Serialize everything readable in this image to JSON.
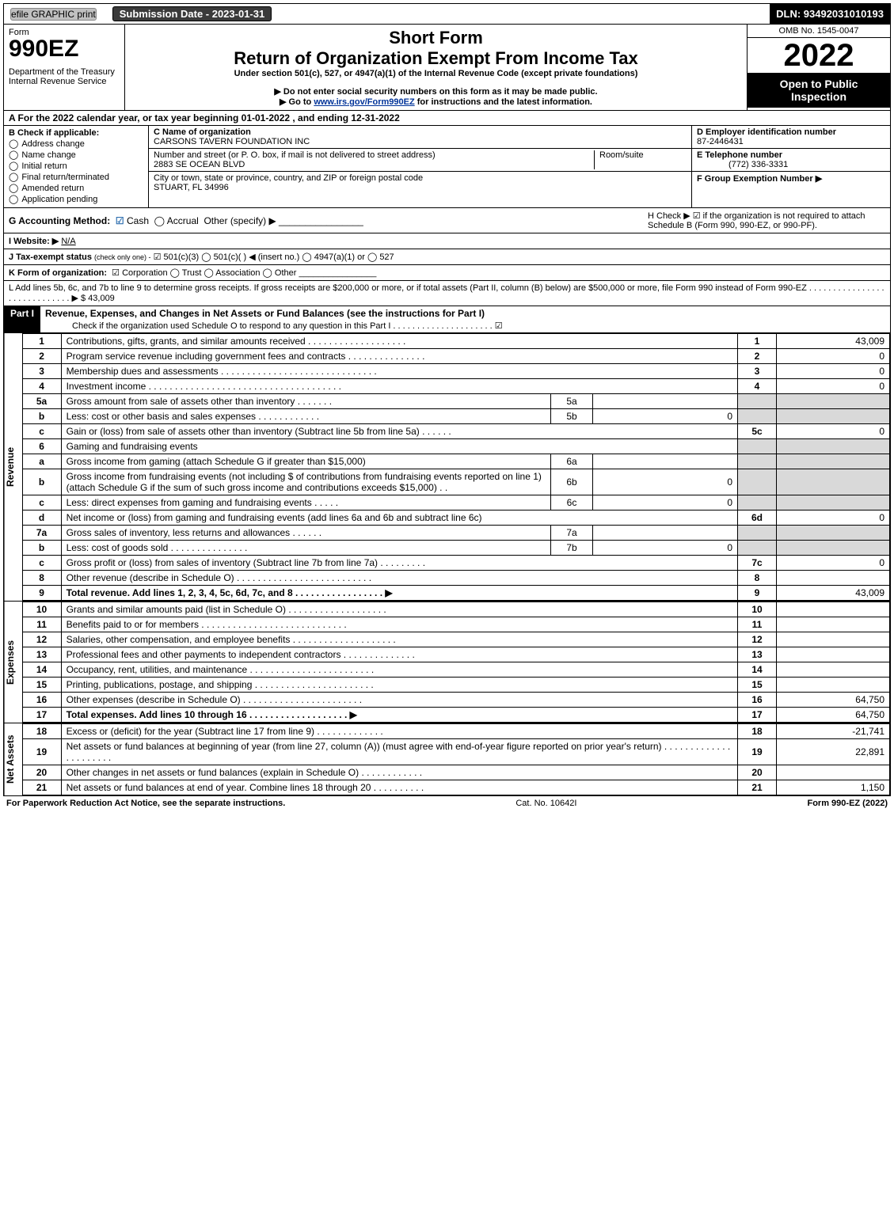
{
  "top": {
    "efile": "efile GRAPHIC print",
    "submission": "Submission Date - 2023-01-31",
    "dln": "DLN: 93492031010193"
  },
  "header": {
    "form_label": "Form",
    "form_number": "990EZ",
    "dept": "Department of the Treasury\nInternal Revenue Service",
    "short_form": "Short Form",
    "main_title": "Return of Organization Exempt From Income Tax",
    "subtitle": "Under section 501(c), 527, or 4947(a)(1) of the Internal Revenue Code (except private foundations)",
    "warn1": "▶ Do not enter social security numbers on this form as it may be made public.",
    "warn2_prefix": "▶ Go to ",
    "warn2_link": "www.irs.gov/Form990EZ",
    "warn2_suffix": " for instructions and the latest information.",
    "omb": "OMB No. 1545-0047",
    "year": "2022",
    "open": "Open to Public Inspection"
  },
  "section_a": "A  For the 2022 calendar year, or tax year beginning 01-01-2022 , and ending 12-31-2022",
  "col_b": {
    "title": "B  Check if applicable:",
    "items": [
      "Address change",
      "Name change",
      "Initial return",
      "Final return/terminated",
      "Amended return",
      "Application pending"
    ]
  },
  "col_c": {
    "name_label": "C Name of organization",
    "name": "CARSONS TAVERN FOUNDATION INC",
    "street_label": "Number and street (or P. O. box, if mail is not delivered to street address)",
    "room_label": "Room/suite",
    "street": "2883 SE OCEAN BLVD",
    "city_label": "City or town, state or province, country, and ZIP or foreign postal code",
    "city": "STUART, FL  34996"
  },
  "col_d": {
    "ein_label": "D Employer identification number",
    "ein": "87-2446431",
    "phone_label": "E Telephone number",
    "phone": "(772) 336-3331",
    "group_label": "F Group Exemption Number   ▶"
  },
  "g": {
    "label": "G Accounting Method:",
    "cash": "Cash",
    "accrual": "Accrual",
    "other": "Other (specify) ▶"
  },
  "h": {
    "text": "H  Check ▶ ☑ if the organization is not required to attach Schedule B (Form 990, 990-EZ, or 990-PF)."
  },
  "i": {
    "label": "I Website: ▶",
    "value": "N/A"
  },
  "j": {
    "label": "J Tax-exempt status",
    "note": "(check only one) -",
    "opts": "☑ 501(c)(3)  ◯ 501(c)(  ) ◀ (insert no.)  ◯ 4947(a)(1) or  ◯ 527"
  },
  "k": {
    "label": "K Form of organization:",
    "opts": "☑ Corporation   ◯ Trust   ◯ Association   ◯ Other"
  },
  "l": {
    "text": "L Add lines 5b, 6c, and 7b to line 9 to determine gross receipts. If gross receipts are $200,000 or more, or if total assets (Part II, column (B) below) are $500,000 or more, file Form 990 instead of Form 990-EZ   .  .  .  .  .  .  .  .  .  .  .  .  .  .  .  .  .  .  .  .  .  .  .  .  .  .  .  .  . ▶ $",
    "value": "43,009"
  },
  "part1": {
    "header": "Part I",
    "title": "Revenue, Expenses, and Changes in Net Assets or Fund Balances (see the instructions for Part I)",
    "check_line": "Check if the organization used Schedule O to respond to any question in this Part I  .  .  .  .  .  .  .  .  .  .  .  .  .  .  .  .  .  .  .  .  . ☑"
  },
  "revenue": {
    "side": "Revenue",
    "rows": [
      {
        "n": "1",
        "desc": "Contributions, gifts, grants, and similar amounts received  .  .  .  .  .  .  .  .  .  .  .  .  .  .  .  .  .  .  .",
        "code": "1",
        "val": "43,009"
      },
      {
        "n": "2",
        "desc": "Program service revenue including government fees and contracts  .  .  .  .  .  .  .  .  .  .  .  .  .  .  .",
        "code": "2",
        "val": "0"
      },
      {
        "n": "3",
        "desc": "Membership dues and assessments  .  .  .  .  .  .  .  .  .  .  .  .  .  .  .  .  .  .  .  .  .  .  .  .  .  .  .  .  .  .",
        "code": "3",
        "val": "0"
      },
      {
        "n": "4",
        "desc": "Investment income  .  .  .  .  .  .  .  .  .  .  .  .  .  .  .  .  .  .  .  .  .  .  .  .  .  .  .  .  .  .  .  .  .  .  .  .  .",
        "code": "4",
        "val": "0"
      },
      {
        "n": "5a",
        "desc": "Gross amount from sale of assets other than inventory  .  .  .  .  .  .  .",
        "inner_code": "5a",
        "inner_val": "",
        "grey": true
      },
      {
        "n": "b",
        "desc": "Less: cost or other basis and sales expenses  .  .  .  .  .  .  .  .  .  .  .  .",
        "inner_code": "5b",
        "inner_val": "0",
        "grey": true
      },
      {
        "n": "c",
        "desc": "Gain or (loss) from sale of assets other than inventory (Subtract line 5b from line 5a)  .  .  .  .  .  .",
        "code": "5c",
        "val": "0"
      },
      {
        "n": "6",
        "desc": "Gaming and fundraising events",
        "grey": true
      },
      {
        "n": "a",
        "desc": "Gross income from gaming (attach Schedule G if greater than $15,000)",
        "inner_code": "6a",
        "inner_val": "",
        "grey": true
      },
      {
        "n": "b",
        "desc": "Gross income from fundraising events (not including $                           of contributions from fundraising events reported on line 1) (attach Schedule G if the sum of such gross income and contributions exceeds $15,000)     .   .",
        "inner_code": "6b",
        "inner_val": "0",
        "grey": true
      },
      {
        "n": "c",
        "desc": "Less: direct expenses from gaming and fundraising events   .  .  .  .  .",
        "inner_code": "6c",
        "inner_val": "0",
        "grey": true
      },
      {
        "n": "d",
        "desc": "Net income or (loss) from gaming and fundraising events (add lines 6a and 6b and subtract line 6c)",
        "code": "6d",
        "val": "0"
      },
      {
        "n": "7a",
        "desc": "Gross sales of inventory, less returns and allowances  .  .  .  .  .  .",
        "inner_code": "7a",
        "inner_val": "",
        "grey": true
      },
      {
        "n": "b",
        "desc": "Less: cost of goods sold       .  .  .  .  .  .  .  .  .  .  .  .  .  .  .",
        "inner_code": "7b",
        "inner_val": "0",
        "grey": true
      },
      {
        "n": "c",
        "desc": "Gross profit or (loss) from sales of inventory (Subtract line 7b from line 7a)  .  .  .  .  .  .  .  .  .",
        "code": "7c",
        "val": "0"
      },
      {
        "n": "8",
        "desc": "Other revenue (describe in Schedule O)  .  .  .  .  .  .  .  .  .  .  .  .  .  .  .  .  .  .  .  .  .  .  .  .  .  .",
        "code": "8",
        "val": ""
      },
      {
        "n": "9",
        "desc": "Total revenue. Add lines 1, 2, 3, 4, 5c, 6d, 7c, and 8    .  .  .  .  .  .  .  .  .  .  .  .  .  .  .  .  . ▶",
        "code": "9",
        "val": "43,009",
        "bold": true
      }
    ]
  },
  "expenses": {
    "side": "Expenses",
    "rows": [
      {
        "n": "10",
        "desc": "Grants and similar amounts paid (list in Schedule O)  .  .  .  .  .  .  .  .  .  .  .  .  .  .  .  .  .  .  .",
        "code": "10",
        "val": ""
      },
      {
        "n": "11",
        "desc": "Benefits paid to or for members    .  .  .  .  .  .  .  .  .  .  .  .  .  .  .  .  .  .  .  .  .  .  .  .  .  .  .  .",
        "code": "11",
        "val": ""
      },
      {
        "n": "12",
        "desc": "Salaries, other compensation, and employee benefits  .  .  .  .  .  .  .  .  .  .  .  .  .  .  .  .  .  .  .  .",
        "code": "12",
        "val": ""
      },
      {
        "n": "13",
        "desc": "Professional fees and other payments to independent contractors  .  .  .  .  .  .  .  .  .  .  .  .  .  .",
        "code": "13",
        "val": ""
      },
      {
        "n": "14",
        "desc": "Occupancy, rent, utilities, and maintenance  .  .  .  .  .  .  .  .  .  .  .  .  .  .  .  .  .  .  .  .  .  .  .  .",
        "code": "14",
        "val": ""
      },
      {
        "n": "15",
        "desc": "Printing, publications, postage, and shipping .  .  .  .  .  .  .  .  .  .  .  .  .  .  .  .  .  .  .  .  .  .  .",
        "code": "15",
        "val": ""
      },
      {
        "n": "16",
        "desc": "Other expenses (describe in Schedule O)    .  .  .  .  .  .  .  .  .  .  .  .  .  .  .  .  .  .  .  .  .  .  .",
        "code": "16",
        "val": "64,750"
      },
      {
        "n": "17",
        "desc": "Total expenses. Add lines 10 through 16     .  .  .  .  .  .  .  .  .  .  .  .  .  .  .  .  .  .  . ▶",
        "code": "17",
        "val": "64,750",
        "bold": true
      }
    ]
  },
  "netassets": {
    "side": "Net Assets",
    "rows": [
      {
        "n": "18",
        "desc": "Excess or (deficit) for the year (Subtract line 17 from line 9)        .  .  .  .  .  .  .  .  .  .  .  .  .",
        "code": "18",
        "val": "-21,741"
      },
      {
        "n": "19",
        "desc": "Net assets or fund balances at beginning of year (from line 27, column (A)) (must agree with end-of-year figure reported on prior year's return)  .  .  .  .  .  .  .  .  .  .  .  .  .  .  .  .  .  .  .  .  .  .",
        "code": "19",
        "val": "22,891"
      },
      {
        "n": "20",
        "desc": "Other changes in net assets or fund balances (explain in Schedule O)  .  .  .  .  .  .  .  .  .  .  .  .",
        "code": "20",
        "val": ""
      },
      {
        "n": "21",
        "desc": "Net assets or fund balances at end of year. Combine lines 18 through 20  .  .  .  .  .  .  .  .  .  .",
        "code": "21",
        "val": "1,150"
      }
    ]
  },
  "footer": {
    "left": "For Paperwork Reduction Act Notice, see the separate instructions.",
    "center": "Cat. No. 10642I",
    "right": "Form 990-EZ (2022)"
  },
  "colors": {
    "blue_check": "#3070b0",
    "link": "#003399"
  }
}
